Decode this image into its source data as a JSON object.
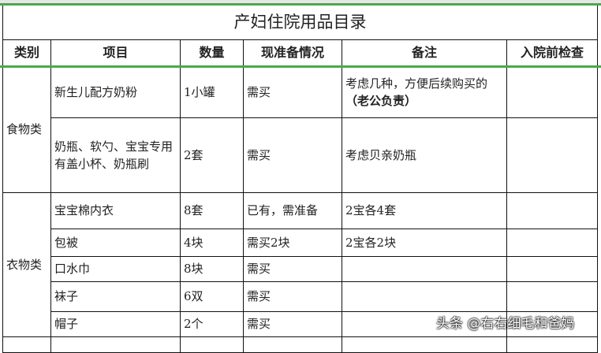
{
  "title": "产妇住院用品目录",
  "headers": [
    "类别",
    "项目",
    "数量",
    "现准备情况",
    "备注",
    "入院前检查"
  ],
  "food": {
    "category": "食物类",
    "rows": [
      {
        "item": "新生儿配方奶粉",
        "qty": "1小罐",
        "status": "需买",
        "note": "考虑几种，方便后续购买的",
        "note_bold": "（老公负责）",
        "check": ""
      },
      {
        "item": "奶瓶、软勺、宝宝专用有盖小杯、奶瓶刷",
        "qty": "2套",
        "status": "需买",
        "note": "考虑贝亲奶瓶",
        "check": ""
      }
    ]
  },
  "clothes": {
    "category": "衣物类",
    "rows": [
      {
        "item": "宝宝棉内衣",
        "qty": "8套",
        "status": "已有，需准备",
        "note": "2宝各4套",
        "check": ""
      },
      {
        "item": "包被",
        "qty": "4块",
        "status": "需买2块",
        "note": "2宝各2块",
        "check": ""
      },
      {
        "item": "口水巾",
        "qty": "8块",
        "status": "需买",
        "note": "",
        "check": ""
      },
      {
        "item": "袜子",
        "qty": "6双",
        "status": "需买",
        "note": "",
        "check": ""
      },
      {
        "item": "帽子",
        "qty": "2个",
        "status": "需买",
        "note": "",
        "check": ""
      }
    ]
  },
  "watermark": "头条 @右右细毛和爸妈",
  "accent": "#4aa84a"
}
